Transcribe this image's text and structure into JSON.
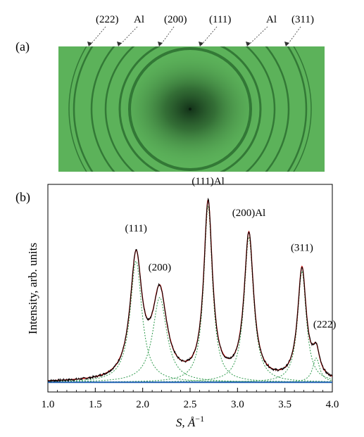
{
  "panel_a": {
    "label": "(a)",
    "ring_labels": [
      "(222)",
      "Al",
      "(200)",
      "(111)",
      "Al",
      "(311)"
    ],
    "colors": {
      "background": "#5cb25a",
      "ring": "#2b6f30",
      "center": "#0f2b15"
    }
  },
  "panel_b": {
    "label": "(b)"
  },
  "chart_data": {
    "type": "line",
    "title": "",
    "xlabel": "S, Å",
    "xlabel_exponent": "−1",
    "ylabel": "Intensity, arb. units",
    "xlim": [
      1.0,
      4.0
    ],
    "ylim": [
      0,
      1.0
    ],
    "xticks": [
      1.0,
      1.5,
      2.0,
      2.5,
      3.0,
      3.5,
      4.0
    ],
    "xtick_labels": [
      "1.0",
      "1.5",
      "2.0",
      "2.5",
      "3.0",
      "3.5",
      "4.0"
    ],
    "yticks_shown": false,
    "background_level": 0.02,
    "peaks": [
      {
        "label": "(111)",
        "position": 1.93,
        "height": 0.6,
        "width": 0.075
      },
      {
        "label": "(200)",
        "position": 2.18,
        "height": 0.42,
        "width": 0.09
      },
      {
        "label": "(111)Al",
        "position": 2.69,
        "height": 0.87,
        "width": 0.055
      },
      {
        "label": "(200)Al",
        "position": 3.12,
        "height": 0.72,
        "width": 0.06
      },
      {
        "label": "(311)",
        "position": 3.68,
        "height": 0.55,
        "width": 0.055
      },
      {
        "label": "(222)",
        "position": 3.83,
        "height": 0.12,
        "width": 0.045
      }
    ],
    "series": [
      {
        "role": "experiment",
        "color": "#000000"
      },
      {
        "role": "fit",
        "color": "#cc0000"
      },
      {
        "role": "components",
        "color": "#2e9a4c"
      },
      {
        "role": "background",
        "color": "#1f5fb4"
      }
    ]
  }
}
